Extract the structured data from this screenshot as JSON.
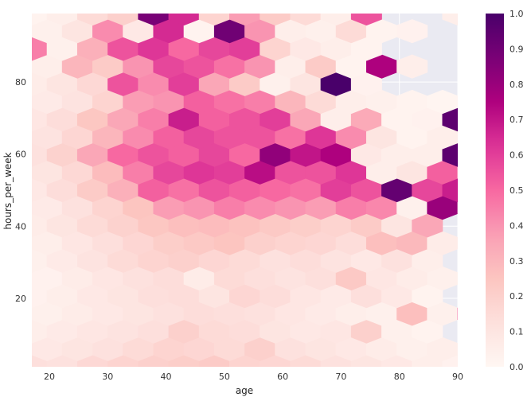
{
  "chart_data": {
    "type": "heatmap",
    "subtype": "hexbin",
    "title": "",
    "xlabel": "age",
    "ylabel": "hours_per_week",
    "xlim": [
      17,
      90
    ],
    "ylim": [
      1,
      99
    ],
    "xticks": [
      "20",
      "30",
      "40",
      "50",
      "60",
      "70",
      "80",
      "90"
    ],
    "yticks": [
      "20",
      "40",
      "60",
      "80"
    ],
    "grid": true,
    "colormap": "RdPu",
    "colormap_stops": [
      "#fff7f3",
      "#fde0dd",
      "#fcc5c0",
      "#fa9fb5",
      "#f768a1",
      "#dd3497",
      "#ae017e",
      "#7a0177",
      "#49006a"
    ],
    "plot_background": "#eaeaf2",
    "colorbar": {
      "range": [
        0.0,
        1.0
      ],
      "ticks": [
        "0.0",
        "0.1",
        "0.2",
        "0.3",
        "0.4",
        "0.5",
        "0.6",
        "0.7",
        "0.8",
        "0.9",
        "1.0"
      ]
    },
    "hex_grid": {
      "rows": 21,
      "cols": 15,
      "values": [
        [
          0.13,
          0.12,
          0.16,
          0.18,
          0.2,
          0.21,
          0.22,
          0.18,
          0.17,
          0.15,
          0.12,
          0.1,
          0.08,
          0.05,
          0.03
        ],
        [
          0.08,
          0.1,
          0.12,
          0.15,
          0.18,
          0.17,
          0.15,
          0.2,
          0.12,
          0.1,
          0.08,
          0.06,
          0.04,
          0.05,
          0.02
        ],
        [
          0.05,
          0.07,
          0.09,
          0.11,
          0.13,
          0.2,
          0.15,
          0.14,
          0.1,
          0.08,
          0.09,
          0.2,
          0.04,
          0.02,
          null
        ],
        [
          0.04,
          0.06,
          0.08,
          0.1,
          0.12,
          0.14,
          0.13,
          0.12,
          0.09,
          0.07,
          0.05,
          0.04,
          0.27,
          0.04,
          0.54
        ],
        [
          0.03,
          0.05,
          0.08,
          0.1,
          0.13,
          0.14,
          0.1,
          0.17,
          0.14,
          0.09,
          0.07,
          0.13,
          0.08,
          0.02,
          null
        ],
        [
          0.03,
          0.06,
          0.09,
          0.12,
          0.14,
          0.06,
          0.15,
          0.13,
          0.11,
          0.13,
          0.23,
          0.09,
          0.06,
          0.04,
          0.01
        ],
        [
          0.04,
          0.07,
          0.11,
          0.15,
          0.18,
          0.2,
          0.17,
          0.15,
          0.12,
          0.14,
          0.11,
          0.08,
          0.12,
          0.05,
          null
        ],
        [
          0.05,
          0.09,
          0.13,
          0.17,
          0.21,
          0.23,
          0.25,
          0.2,
          0.18,
          0.17,
          0.14,
          0.27,
          0.29,
          0.06,
          0.03
        ],
        [
          0.06,
          0.1,
          0.15,
          0.19,
          0.24,
          0.27,
          0.28,
          0.26,
          0.23,
          0.21,
          0.18,
          0.22,
          0.1,
          0.35,
          null
        ],
        [
          0.07,
          0.12,
          0.18,
          0.25,
          0.38,
          0.4,
          0.45,
          0.42,
          0.4,
          0.38,
          0.45,
          0.43,
          0.04,
          0.8,
          0.07
        ],
        [
          0.08,
          0.14,
          0.22,
          0.32,
          0.52,
          0.48,
          0.55,
          0.52,
          0.5,
          0.48,
          0.6,
          0.55,
          0.93,
          0.58,
          0.68
        ],
        [
          0.1,
          0.16,
          0.28,
          0.45,
          0.58,
          0.62,
          0.6,
          0.72,
          0.55,
          0.55,
          0.62,
          0.05,
          0.1,
          0.52,
          0.03
        ],
        [
          0.12,
          0.19,
          0.35,
          0.5,
          0.55,
          0.52,
          0.58,
          0.5,
          0.82,
          0.7,
          0.75,
          0.08,
          0.05,
          0.05,
          0.95
        ],
        [
          0.11,
          0.17,
          0.3,
          0.42,
          0.52,
          0.58,
          0.55,
          0.55,
          0.48,
          0.62,
          0.42,
          0.1,
          0.02,
          0.05,
          null
        ],
        [
          0.09,
          0.14,
          0.24,
          0.35,
          0.45,
          0.68,
          0.52,
          0.55,
          0.6,
          0.35,
          0.05,
          0.34,
          0.02,
          0.03,
          0.95
        ],
        [
          0.07,
          0.11,
          0.18,
          0.38,
          0.4,
          0.52,
          0.48,
          0.45,
          0.3,
          0.15,
          0.05,
          0.04,
          0.02,
          0.01,
          null
        ],
        [
          0.06,
          0.1,
          0.16,
          0.55,
          0.42,
          0.6,
          0.35,
          0.22,
          0.04,
          0.1,
          1.0,
          0.03,
          null,
          null,
          null
        ],
        [
          0.05,
          0.3,
          0.22,
          0.4,
          0.58,
          0.55,
          0.48,
          0.4,
          0.05,
          0.22,
          0.02,
          0.75,
          0.05,
          null,
          null
        ],
        [
          0.45,
          0.04,
          0.32,
          0.55,
          0.62,
          0.5,
          0.58,
          0.6,
          0.18,
          0.08,
          0.05,
          0.02,
          null,
          null,
          null
        ],
        [
          0.04,
          0.1,
          0.42,
          0.08,
          0.65,
          0.02,
          0.9,
          0.4,
          0.05,
          0.04,
          0.15,
          0.02,
          0.03,
          null,
          null
        ],
        [
          0.02,
          0.05,
          0.15,
          0.2,
          0.88,
          0.65,
          0.18,
          0.38,
          0.22,
          0.15,
          0.05,
          0.55,
          null,
          null,
          0.05
        ]
      ]
    }
  }
}
